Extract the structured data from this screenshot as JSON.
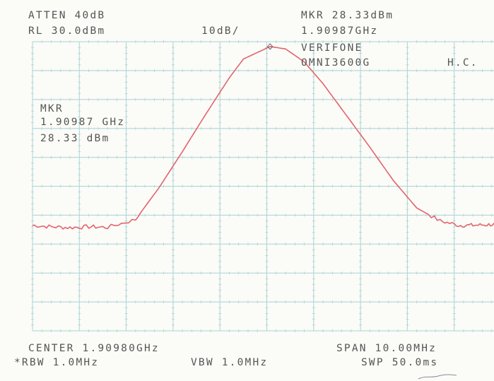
{
  "header": {
    "atten": "ATTEN 40dB",
    "ref_level": "RL 30.0dBm",
    "scale": "10dB/",
    "marker_level": "MKR 28.33dBm",
    "marker_freq": "1.90987GHz",
    "device_line1": "VERIFONE",
    "device_line2": "OMNI3600G",
    "initials": "H.C."
  },
  "marker_box": {
    "title": "MKR",
    "freq": "1.90987 GHz",
    "level": "28.33 dBm"
  },
  "footer": {
    "center": "CENTER 1.90980GHz",
    "span": "SPAN 10.00MHz",
    "rbw": "*RBW 1.0MHz",
    "vbw": "VBW 1.0MHz",
    "sweep": "SWP 50.0ms"
  },
  "colors": {
    "grid": "#a9d4d4",
    "trace": "#e2646a",
    "text": "#555555",
    "background": "#fbfbf8"
  },
  "chart_data": {
    "type": "line",
    "title": "",
    "xlabel": "",
    "ylabel": "",
    "x_unit": "GHz",
    "y_unit": "dBm",
    "xlim": [
      1.9048,
      1.9148
    ],
    "ylim": [
      -70,
      30
    ],
    "grid": true,
    "x_divisions": 10,
    "y_divisions": 10,
    "marker": {
      "x": 1.90987,
      "y": 28.33
    },
    "series": [
      {
        "x": [
          1.9048,
          1.9052,
          1.9056,
          1.906,
          1.9064,
          1.907,
          1.9075,
          1.908,
          1.9085,
          1.909,
          1.9093,
          1.90987,
          1.9102,
          1.9106,
          1.911,
          1.9115,
          1.912,
          1.9125,
          1.913,
          1.9135,
          1.9139,
          1.9142,
          1.9145,
          1.9148
        ],
        "y": [
          -33.5,
          -34.0,
          -34.3,
          -34.0,
          -34.2,
          -31.5,
          -20.5,
          -8.0,
          5.0,
          17.5,
          24.0,
          28.33,
          27.5,
          23.0,
          15.5,
          4.5,
          -6.5,
          -18.0,
          -27.5,
          -32.0,
          -33.5,
          -33.5,
          -33.3,
          -33.0
        ]
      }
    ]
  }
}
